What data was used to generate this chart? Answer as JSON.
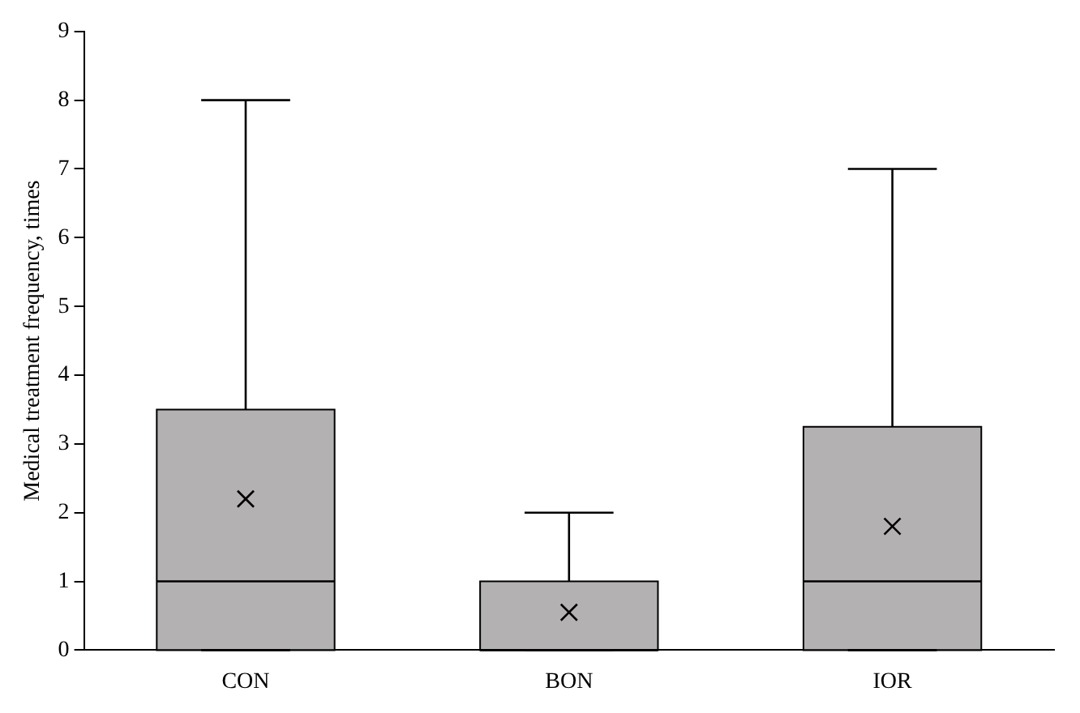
{
  "chart_data": {
    "type": "box",
    "ylabel": "Medical treatment frequency, times",
    "categories": [
      "CON",
      "BON",
      "IOR"
    ],
    "series": [
      {
        "color": "#b3b1b1",
        "boxes": [
          {
            "low": 0,
            "q1": 0,
            "median": 1,
            "q3": 3.5,
            "high": 8,
            "mean": 2.2
          },
          {
            "low": 0,
            "q1": 0,
            "median": 0,
            "q3": 1,
            "high": 2,
            "mean": 0.55
          },
          {
            "low": 0,
            "q1": 0,
            "median": 1,
            "q3": 3.25,
            "high": 7,
            "mean": 1.8
          }
        ]
      }
    ],
    "ylim": [
      0,
      9
    ],
    "yticks": [
      0,
      1,
      2,
      3,
      4,
      5,
      6,
      7,
      8,
      9
    ],
    "grid": false,
    "legend": false
  }
}
